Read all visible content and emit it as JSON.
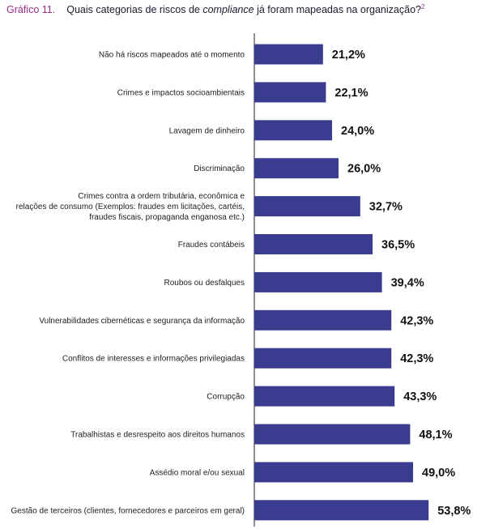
{
  "figure_number": "Gráfico 11.",
  "title_before": "Quais categorias de riscos de ",
  "title_emphasis": "compliance",
  "title_after": " já foram mapeadas na organização?",
  "title_footnote": "2",
  "colors": {
    "bar": "#3a3d8f",
    "accent": "#9b2d8c",
    "axis": "#222222"
  },
  "chart_data": {
    "type": "bar",
    "orientation": "horizontal",
    "categories": [
      [
        "Não há riscos mapeados até o momento"
      ],
      [
        "Crimes e impactos socioambientais"
      ],
      [
        "Lavagem de dinheiro"
      ],
      [
        "Discriminação"
      ],
      [
        "Crimes contra a ordem tributária, econômica e",
        "relações de consumo (Exemplos: fraudes em licitações, cartéis,",
        "fraudes fiscais, propaganda enganosa etc.)"
      ],
      [
        "Fraudes contábeis"
      ],
      [
        "Roubos ou desfalques"
      ],
      [
        "Vulnerabilidades cibernéticas e segurança da informação"
      ],
      [
        "Conflitos de interesses e informações privilegiadas"
      ],
      [
        "Corrupção"
      ],
      [
        "Trabalhistas e desrespeito aos direitos humanos"
      ],
      [
        "Assédio moral e/ou sexual"
      ],
      [
        "Gestão de terceiros (clientes, fornecedores e parceiros em geral)"
      ]
    ],
    "values": [
      21.2,
      22.1,
      24.0,
      26.0,
      32.7,
      36.5,
      39.4,
      42.3,
      42.3,
      43.3,
      48.1,
      49.0,
      53.8
    ],
    "value_labels": [
      "21,2%",
      "22,1%",
      "24,0%",
      "26,0%",
      "32,7%",
      "36,5%",
      "39,4%",
      "42,3%",
      "42,3%",
      "43,3%",
      "48,1%",
      "49,0%",
      "53,8%"
    ],
    "xlim": [
      0,
      100
    ],
    "grid": false,
    "legend": "none"
  }
}
